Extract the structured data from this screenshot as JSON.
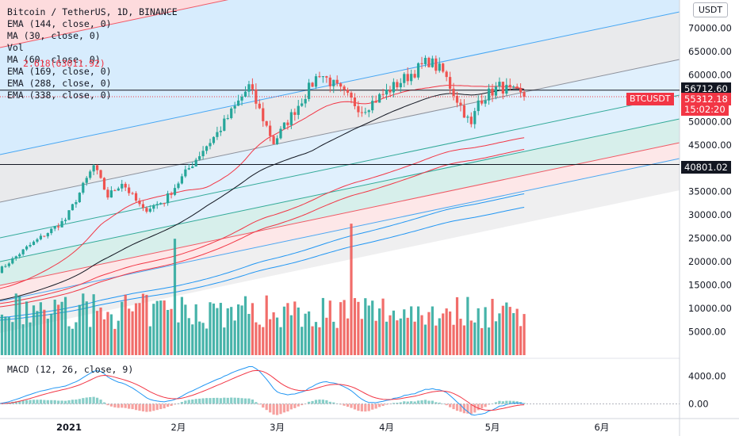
{
  "header": {
    "title": "Bitcoin / TetherUS, 1D, BINANCE",
    "indicators": [
      "EMA (144, close, 0)",
      "MA (30, close, 0)",
      "Vol",
      "MA (60, close, 0)",
      "EMA (169, close, 0)",
      "EMA (288, close, 0)",
      "EMA (338, close, 0)"
    ],
    "fib_label": "2.618(63011.92)",
    "currency": "USDT"
  },
  "macd": {
    "label": "MACD (12, 26, close, 9)",
    "ticks": [
      "4000.00",
      "0.00"
    ]
  },
  "price_axis": {
    "ticks": [
      "70000.00",
      "65000.00",
      "60000.00",
      "55000.00",
      "50000.00",
      "45000.00",
      "40000.00",
      "35000.00",
      "30000.00",
      "25000.00",
      "20000.00",
      "15000.00",
      "10000.00",
      "5000.00"
    ]
  },
  "price_tags": {
    "upper_line": "56712.60",
    "last_price": "55312.18",
    "symbol": "BTCUSDT",
    "countdown": "15:02:20",
    "lower_line": "40801.02"
  },
  "time_axis": [
    "2021",
    "2月",
    "3月",
    "4月",
    "5月",
    "6月"
  ],
  "colors": {
    "up": "#26a69a",
    "down": "#ef5350"
  },
  "chart_data": {
    "type": "candlestick",
    "title": "Bitcoin / TetherUS, 1D, BINANCE",
    "x_range": [
      "2020-12-12",
      "2021-06-30"
    ],
    "ylim": [
      0,
      75000
    ],
    "waypoints": [
      [
        "2020-12-12",
        18000
      ],
      [
        "2020-12-20",
        23000
      ],
      [
        "2020-12-31",
        29000
      ],
      [
        "2021-01-08",
        40500
      ],
      [
        "2021-01-12",
        34000
      ],
      [
        "2021-01-16",
        37000
      ],
      [
        "2021-01-22",
        31000
      ],
      [
        "2021-01-28",
        33000
      ],
      [
        "2021-02-08",
        44000
      ],
      [
        "2021-02-12",
        47500
      ],
      [
        "2021-02-21",
        57500
      ],
      [
        "2021-02-28",
        45500
      ],
      [
        "2021-03-13",
        60500
      ],
      [
        "2021-03-25",
        52500
      ],
      [
        "2021-04-13",
        63000
      ],
      [
        "2021-04-17",
        60500
      ],
      [
        "2021-04-25",
        49000
      ],
      [
        "2021-04-27",
        54500
      ],
      [
        "2021-05-03",
        57500
      ],
      [
        "2021-05-10",
        55312
      ]
    ],
    "vol_ylim": [
      0,
      25000
    ],
    "macd_ylim": [
      -2000,
      6000
    ],
    "lines": {
      "upper_horizontal": 56712.6,
      "lower_horizontal": 40801.02,
      "last_price": 55312.18
    }
  }
}
